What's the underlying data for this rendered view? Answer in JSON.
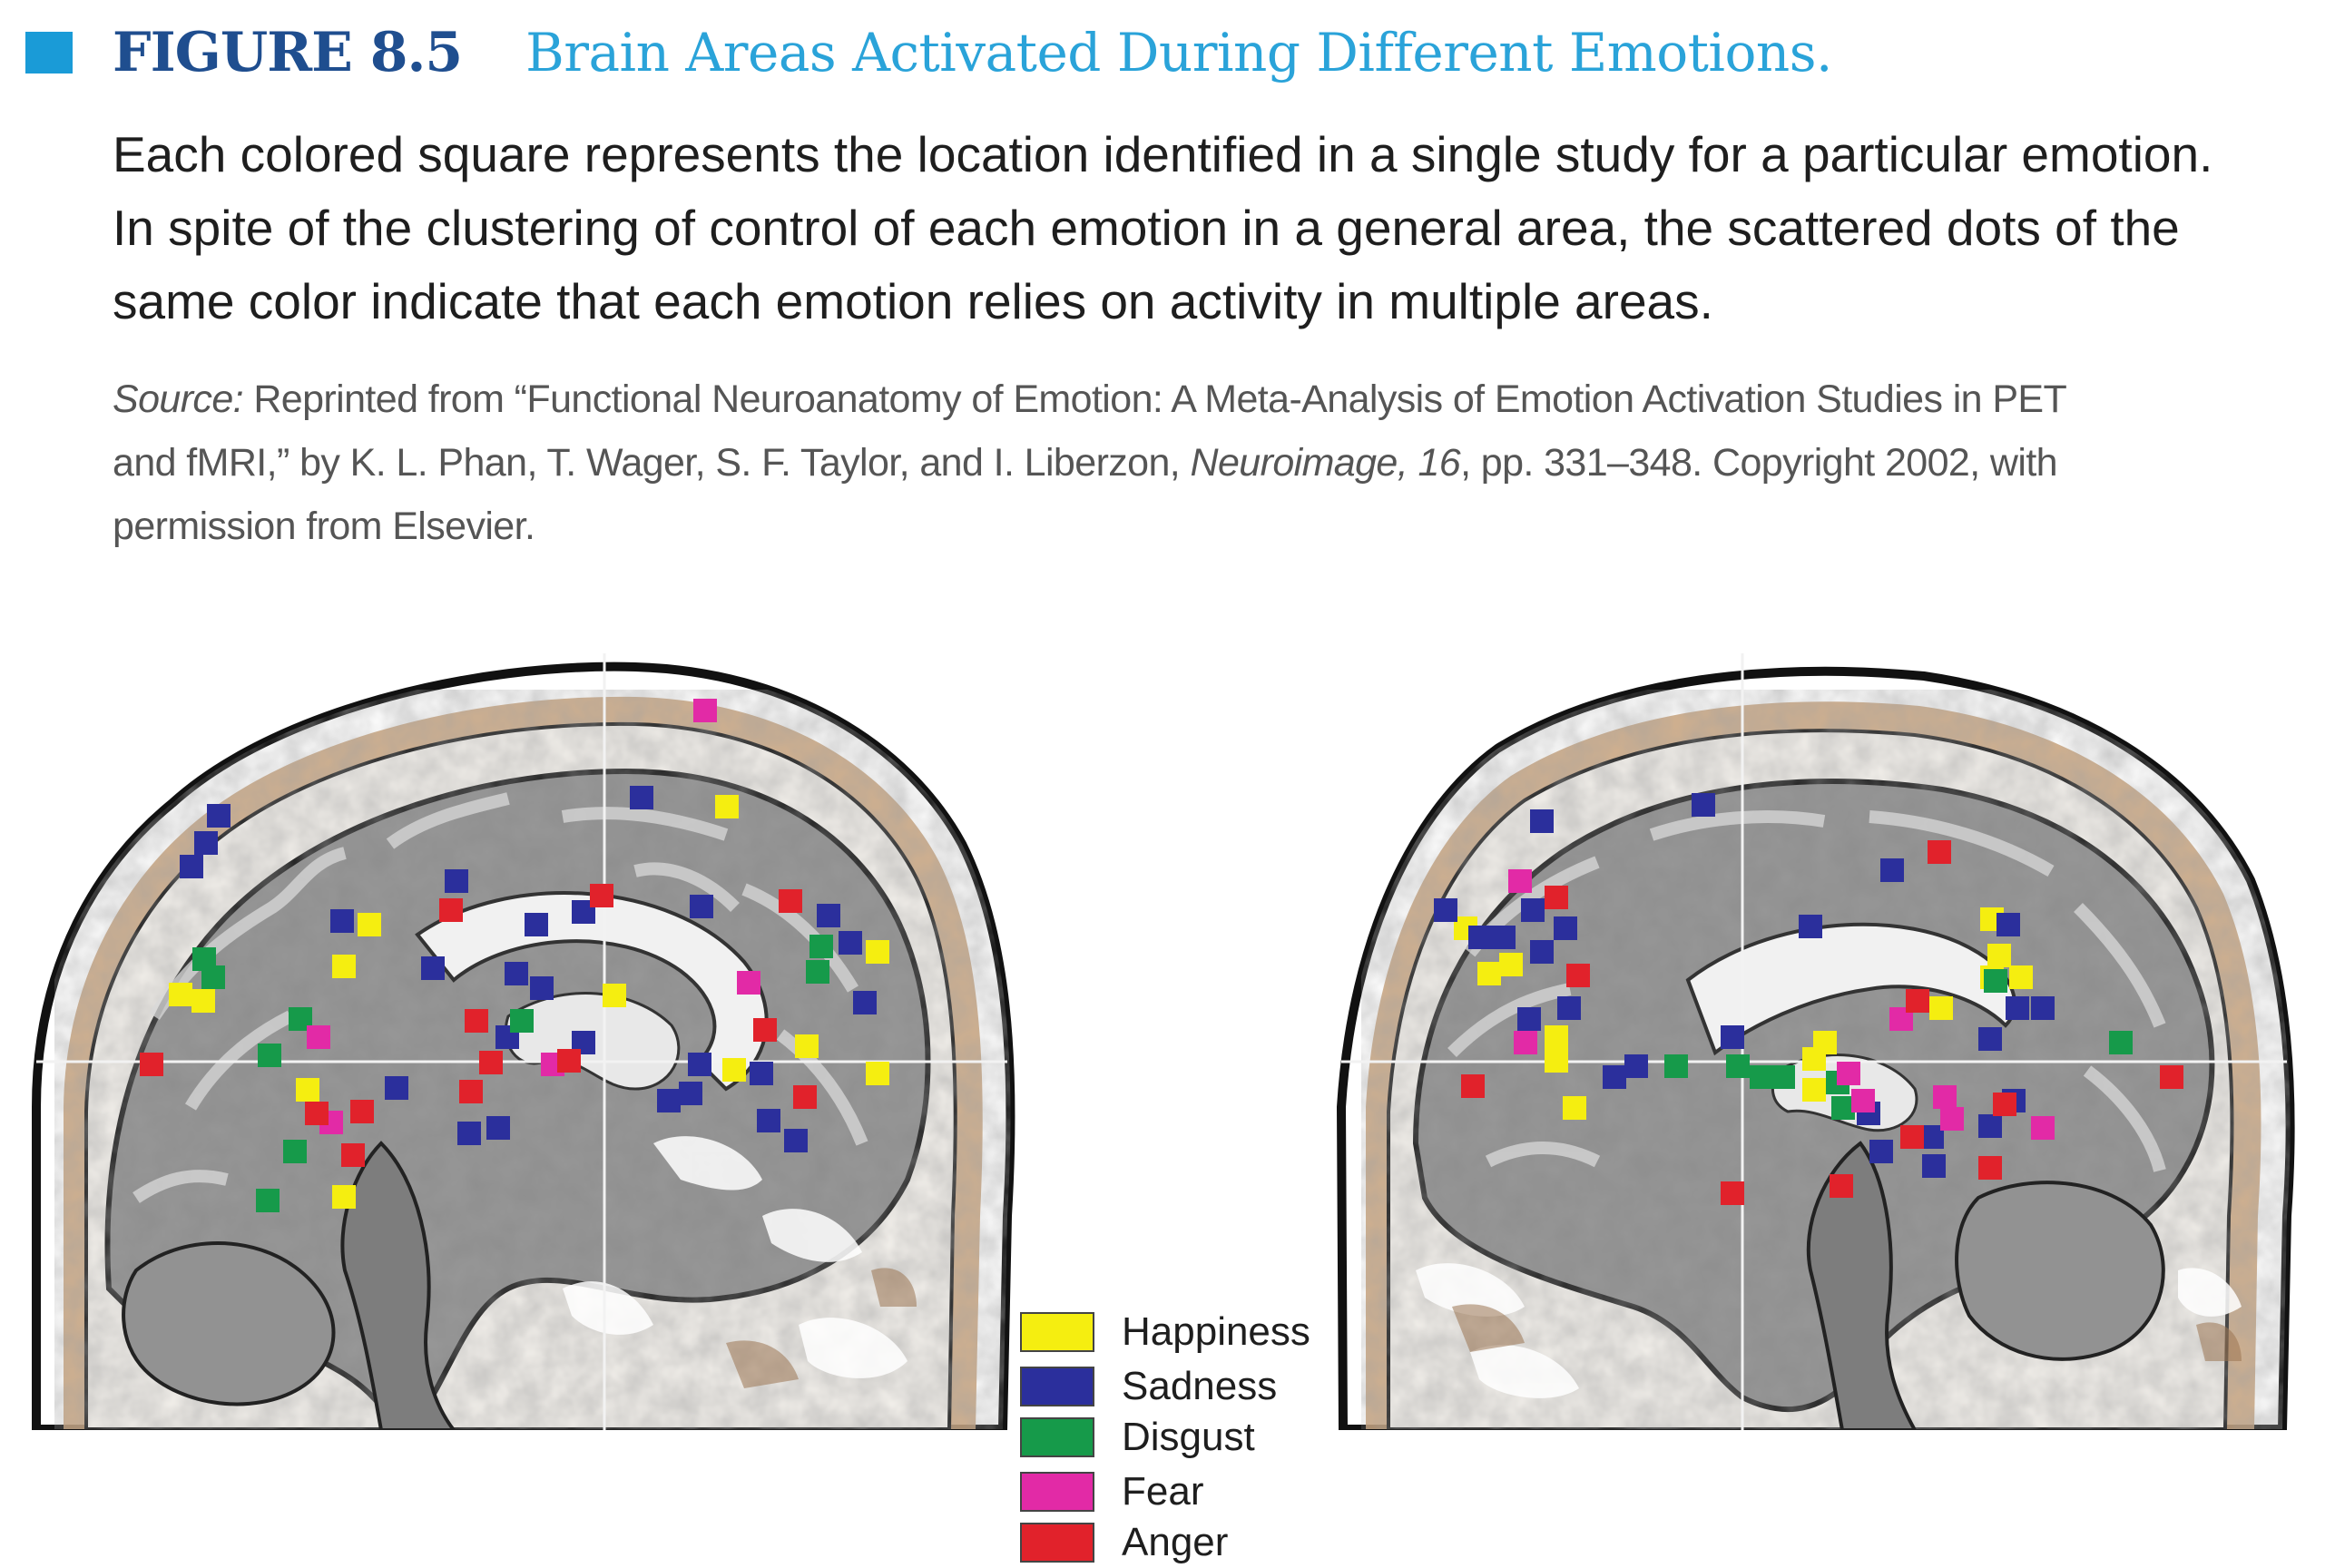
{
  "figure": {
    "label": "FIGURE 8.5",
    "title": "Brain Areas Activated During Different Emotions.",
    "accent_color": "#1a9bd7",
    "label_color": "#1f4e8f",
    "title_color": "#2aa3d9"
  },
  "caption": {
    "lines": [
      "Each colored square represents the location identified in a single study for a particular emotion.",
      "In spite of the clustering of control of each emotion in a general area, the scattered dots of the",
      "same color indicate that each emotion relies on activity in multiple areas."
    ]
  },
  "source": {
    "label": "Source:",
    "line1": " Reprinted from “Functional Neuroanatomy of Emotion: A Meta-Analysis of Emotion Activation Studies in PET",
    "line2_a": "and fMRI,” by K. L. Phan, T. Wager, S. F. Taylor, and I. Liberzon, ",
    "journal": "Neuroimage, 16",
    "line2_b": ", pp. 331–348. Copyright 2002, with",
    "line3": "permission from Elsevier."
  },
  "legend": [
    {
      "label": "Happiness",
      "color": "#f5ee10"
    },
    {
      "label": "Sadness",
      "color": "#2b2f9c"
    },
    {
      "label": "Disgust",
      "color": "#169a4a"
    },
    {
      "label": "Fear",
      "color": "#e22aa6"
    },
    {
      "label": "Anger",
      "color": "#e1222b"
    }
  ],
  "images": [
    {
      "name": "left-brain-sagittal-slice"
    },
    {
      "name": "right-brain-sagittal-slice"
    }
  ]
}
